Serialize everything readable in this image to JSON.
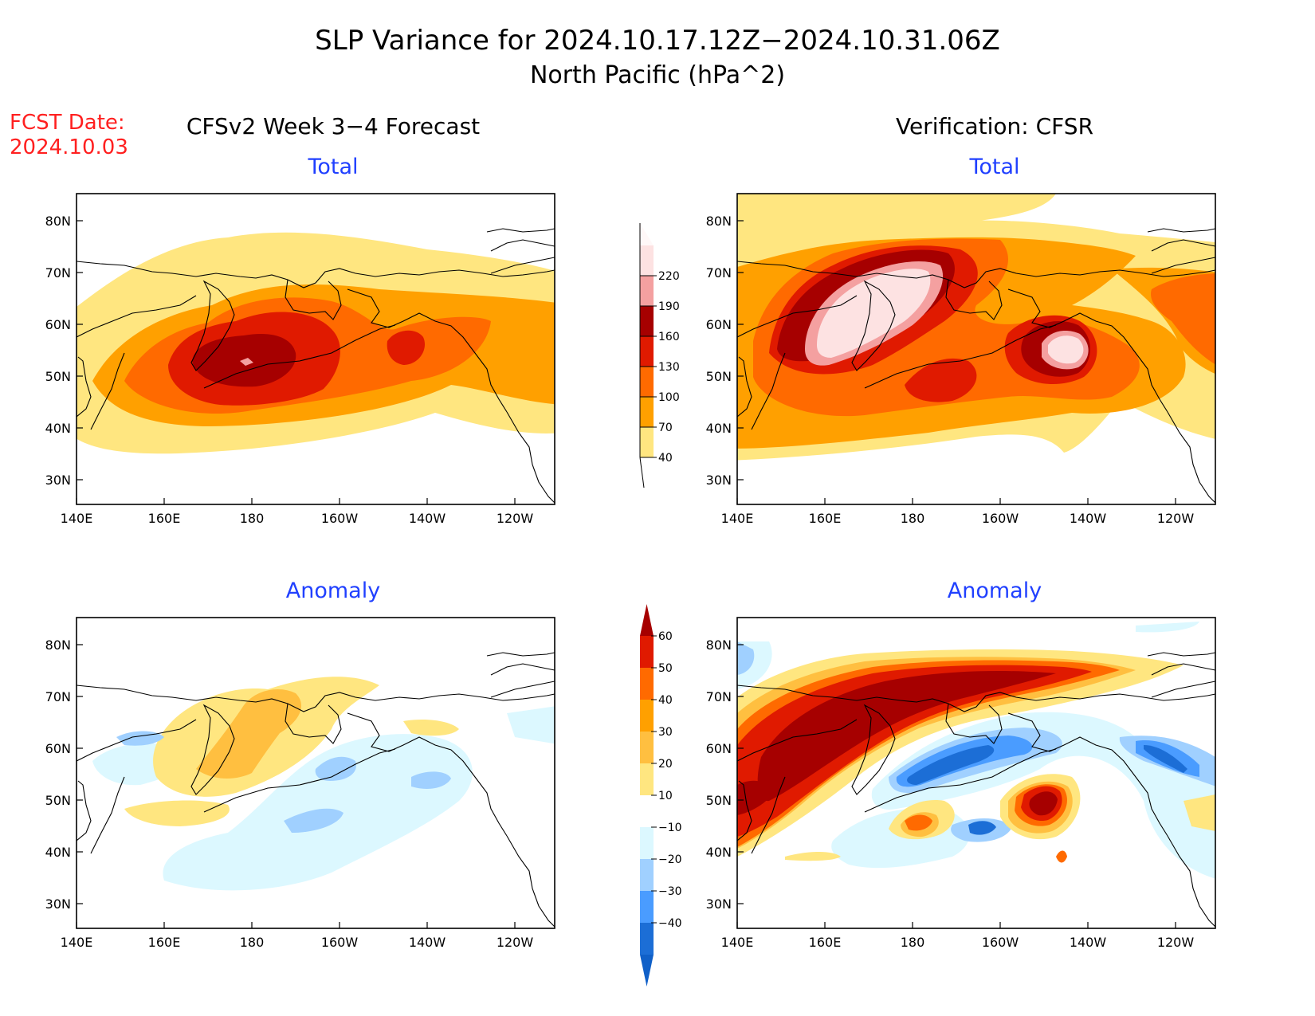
{
  "title": {
    "line1": "SLP Variance for 2024.10.17.12Z−2024.10.31.06Z",
    "line2": "North Pacific (hPa^2)"
  },
  "fcst_date": {
    "label": "FCST Date:",
    "value": "2024.10.03"
  },
  "columns": {
    "left": "CFSv2 Week 3−4 Forecast",
    "right": "Verification: CFSR"
  },
  "panel_titles": {
    "total": "Total",
    "anomaly": "Anomaly"
  },
  "axes": {
    "x_ticks": [
      "140E",
      "160E",
      "180",
      "160W",
      "140W",
      "120W"
    ],
    "y_ticks": [
      "80N",
      "70N",
      "60N",
      "50N",
      "40N",
      "30N"
    ]
  },
  "colors": {
    "title_text": "#000000",
    "fcst_text": "#ff2020",
    "panel_title_text": "#2040ff"
  },
  "colorbar_total": {
    "levels": [
      "40",
      "70",
      "100",
      "130",
      "160",
      "190",
      "220"
    ],
    "colors": [
      "#ffe680",
      "#ffa000",
      "#ff6a00",
      "#e01a00",
      "#a60000",
      "#f4a0a0",
      "#fde2e2"
    ]
  },
  "colorbar_anomaly": {
    "levels": [
      "60",
      "50",
      "40",
      "30",
      "20",
      "10",
      "−10",
      "−20",
      "−30",
      "−40"
    ],
    "colors": [
      "#a60000",
      "#e01a00",
      "#ff6a00",
      "#ffa000",
      "#ffbf40",
      "#ffe680",
      "#ffffff",
      "#dcf8ff",
      "#a0d0ff",
      "#4a9cff",
      "#1c6ed6",
      "#1060c8"
    ]
  }
}
